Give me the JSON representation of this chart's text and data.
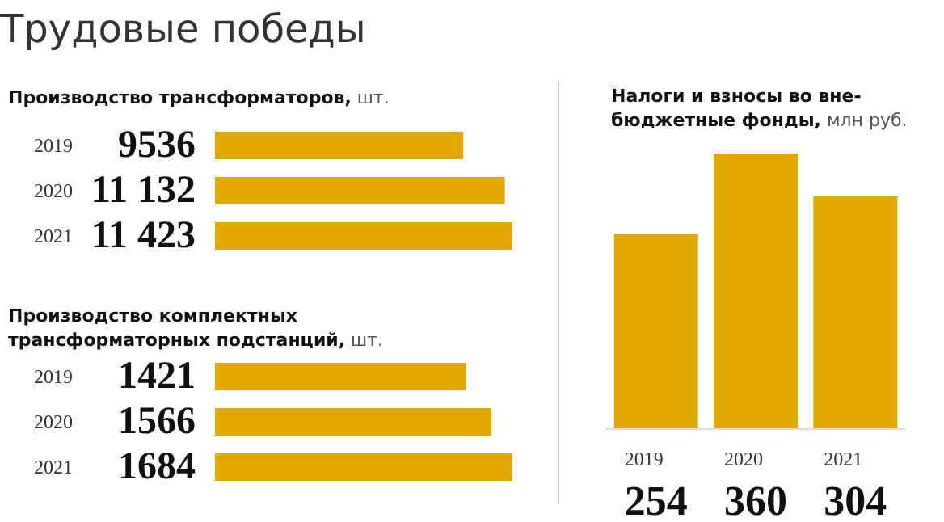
{
  "chart_data": [
    {
      "type": "bar",
      "orientation": "horizontal",
      "title": "Производство трансформаторов, шт.",
      "annotations": [
        "Трудовые победы"
      ],
      "categories": [
        "2019",
        "2020",
        "2021"
      ],
      "values": [
        9536,
        11132,
        11423
      ],
      "value_labels": [
        "9536",
        "11 132",
        "11 423"
      ],
      "color": "#e0a800"
    },
    {
      "type": "bar",
      "orientation": "horizontal",
      "title": "Производство комплектных\nтрансформаторных подстанций, шт.",
      "categories": [
        "2019",
        "2020",
        "2021"
      ],
      "values": [
        1421,
        1566,
        1684
      ],
      "value_labels": [
        "1421",
        "1566",
        "1684"
      ],
      "color": "#e0a800"
    },
    {
      "type": "bar",
      "title": "Налоги и взносы во вне-\nбюджетные фонды, млн руб.",
      "categories": [
        "2019",
        "2020",
        "2021"
      ],
      "values": [
        254,
        360,
        304
      ],
      "value_labels": [
        "254",
        "360",
        "304"
      ],
      "color": "#e0a800"
    }
  ]
}
